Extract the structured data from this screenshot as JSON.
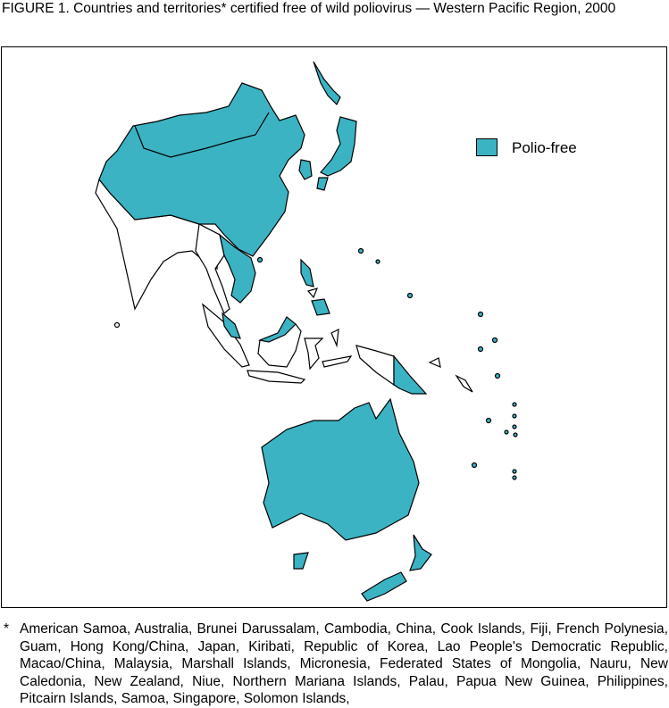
{
  "figure": {
    "title": "FIGURE 1. Countries and territories* certified free of wild poliovirus — Western Pacific Region, 2000"
  },
  "legend": {
    "items": [
      {
        "label": "Polio-free",
        "color": "#3bb3c3"
      }
    ]
  },
  "footnote": {
    "marker": "*",
    "text": "American Samoa, Australia, Brunei Darussalam, Cambodia, China, Cook Islands, Fiji, French Polynesia, Guam, Hong Kong/China, Japan, Kiribati, Republic of Korea, Lao People's Democratic Republic, Macao/China, Malaysia, Marshall Islands, Micronesia, Federated States of Mongolia, Nauru, New Caledonia, New Zealand, Niue, Northern Mariana Islands, Palau, Papua New Guinea, Philippines, Pitcairn Islands, Samoa, Singapore, Solomon Islands,"
  }
}
